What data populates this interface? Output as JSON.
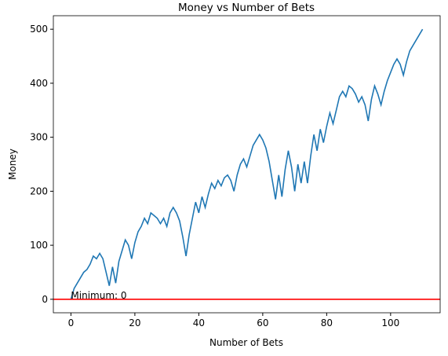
{
  "chart_data": {
    "type": "line",
    "title": "Money vs Number of Bets",
    "xlabel": "Number of Bets",
    "ylabel": "Money",
    "x": [
      0,
      1,
      2,
      3,
      4,
      5,
      6,
      7,
      8,
      9,
      10,
      11,
      12,
      13,
      14,
      15,
      16,
      17,
      18,
      19,
      20,
      21,
      22,
      23,
      24,
      25,
      26,
      27,
      28,
      29,
      30,
      31,
      32,
      33,
      34,
      35,
      36,
      37,
      38,
      39,
      40,
      41,
      42,
      43,
      44,
      45,
      46,
      47,
      48,
      49,
      50,
      51,
      52,
      53,
      54,
      55,
      56,
      57,
      58,
      59,
      60,
      61,
      62,
      63,
      64,
      65,
      66,
      67,
      68,
      69,
      70,
      71,
      72,
      73,
      74,
      75,
      76,
      77,
      78,
      79,
      80,
      81,
      82,
      83,
      84,
      85,
      86,
      87,
      88,
      89,
      90,
      91,
      92,
      93,
      94,
      95,
      96,
      97,
      98,
      99,
      100,
      101,
      102,
      103,
      104,
      105,
      106,
      107,
      108,
      109,
      110
    ],
    "series": [
      {
        "name": "Money",
        "color": "#1f77b4",
        "values": [
          0,
          20,
          30,
          40,
          50,
          55,
          65,
          80,
          75,
          85,
          75,
          50,
          25,
          60,
          30,
          70,
          90,
          110,
          100,
          75,
          105,
          125,
          135,
          150,
          140,
          160,
          155,
          150,
          140,
          150,
          135,
          160,
          170,
          160,
          145,
          115,
          80,
          120,
          150,
          180,
          160,
          190,
          170,
          195,
          215,
          205,
          220,
          210,
          225,
          230,
          220,
          200,
          230,
          250,
          260,
          245,
          265,
          285,
          295,
          305,
          295,
          280,
          255,
          220,
          185,
          230,
          190,
          240,
          275,
          245,
          200,
          250,
          215,
          255,
          215,
          265,
          305,
          275,
          315,
          290,
          320,
          345,
          325,
          350,
          375,
          385,
          375,
          395,
          390,
          380,
          365,
          375,
          360,
          330,
          370,
          395,
          380,
          360,
          385,
          405,
          420,
          435,
          445,
          435,
          415,
          440,
          460,
          470,
          480,
          490,
          500
        ]
      }
    ],
    "hline": {
      "value": 0,
      "color": "#ff0000"
    },
    "annotation": {
      "text": "Minimum: 0",
      "x": 0,
      "y": 0
    },
    "xlim": [
      -5.5,
      115.5
    ],
    "ylim": [
      -25,
      525
    ],
    "xticks": [
      0,
      20,
      40,
      60,
      80,
      100
    ],
    "yticks": [
      0,
      100,
      200,
      300,
      400,
      500
    ]
  }
}
